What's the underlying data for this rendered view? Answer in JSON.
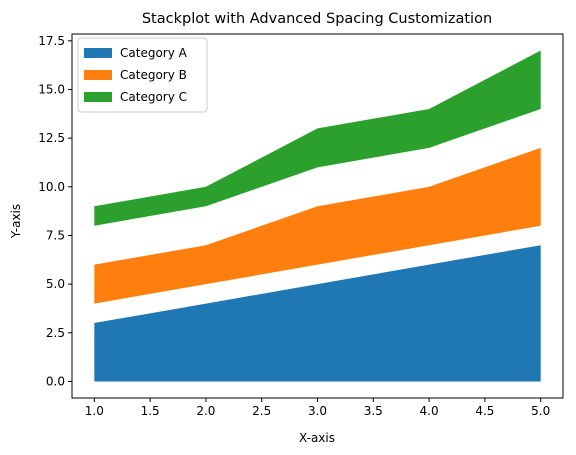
{
  "chart_data": {
    "type": "area",
    "title": "Stackplot with Advanced Spacing Customization",
    "xlabel": "X-axis",
    "ylabel": "Y-axis",
    "x": [
      1,
      2,
      3,
      4,
      5
    ],
    "xlim": [
      0.8,
      5.2
    ],
    "ylim": [
      -0.85,
      17.85
    ],
    "xticks": [
      "1.0",
      "1.5",
      "2.0",
      "2.5",
      "3.0",
      "3.5",
      "4.0",
      "4.5",
      "5.0"
    ],
    "yticks": [
      "0.0",
      "2.5",
      "5.0",
      "7.5",
      "10.0",
      "12.5",
      "15.0",
      "17.5"
    ],
    "grid": false,
    "legend_position": "upper-left",
    "series": [
      {
        "name": "Category A",
        "color": "#1f77b4",
        "lower": [
          0,
          0,
          0,
          0,
          0
        ],
        "upper": [
          3,
          4,
          5,
          6,
          7
        ]
      },
      {
        "name": "Category B",
        "color": "#ff7f0e",
        "lower": [
          4,
          5,
          6,
          7,
          8
        ],
        "upper": [
          6,
          7,
          9,
          10,
          12
        ]
      },
      {
        "name": "Category C",
        "color": "#2ca02c",
        "lower": [
          8,
          9,
          11,
          12,
          14
        ],
        "upper": [
          9,
          10,
          13,
          14,
          17
        ]
      }
    ]
  }
}
